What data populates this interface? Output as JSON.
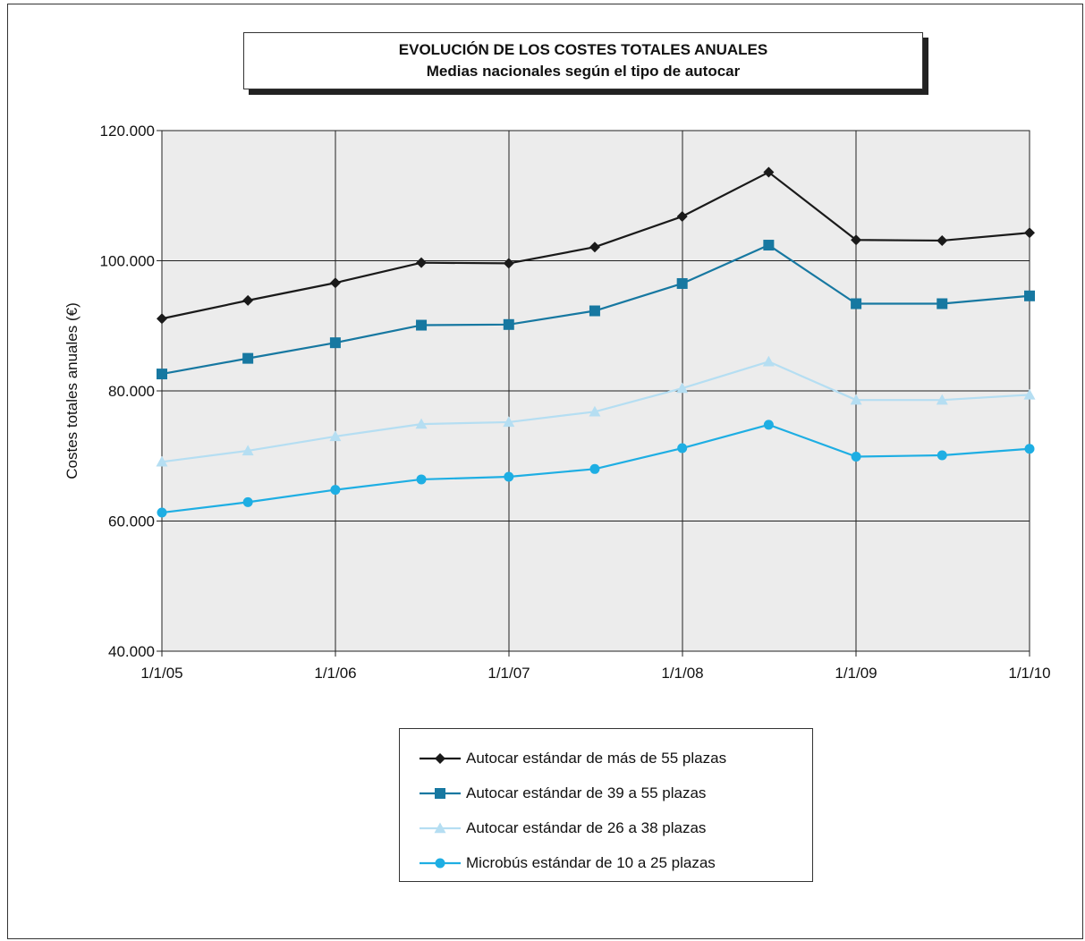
{
  "chart_data": {
    "type": "line",
    "title": "EVOLUCIÓN DE LOS COSTES TOTALES ANUALES",
    "subtitle": "Medias nacionales según el tipo de autocar",
    "xlabel": "",
    "ylabel": "Costes totales anuales (€)",
    "ylim": [
      40000,
      120000
    ],
    "yticks": [
      "40.000",
      "60.000",
      "80.000",
      "100.000",
      "120.000"
    ],
    "xlim": [
      "2005-01-01",
      "2010-01-01"
    ],
    "xticks": [
      "1/1/05",
      "1/1/06",
      "1/1/07",
      "1/1/08",
      "1/1/09",
      "1/1/10"
    ],
    "x": [
      "2005-01-01",
      "2005-07-01",
      "2006-01-01",
      "2006-07-01",
      "2007-01-01",
      "2007-07-01",
      "2008-01-01",
      "2008-07-01",
      "2009-01-01",
      "2009-07-01",
      "2010-01-01"
    ],
    "grid": true,
    "legend": "bottom-center",
    "series": [
      {
        "name": "Autocar estándar de más de 55 plazas",
        "marker": "diamond",
        "color": "#1a1a1a",
        "values": [
          91100,
          93900,
          96600,
          99700,
          99600,
          102100,
          106800,
          113600,
          103200,
          103100,
          104300
        ]
      },
      {
        "name": "Autocar estándar de 39 a 55 plazas",
        "marker": "square",
        "color": "#1778a1",
        "values": [
          82600,
          85000,
          87400,
          90100,
          90200,
          92300,
          96500,
          102400,
          93400,
          93400,
          94600
        ]
      },
      {
        "name": "Autocar estándar de 26 a 38 plazas",
        "marker": "triangle",
        "color": "#b5def2",
        "values": [
          69100,
          70800,
          73000,
          74900,
          75200,
          76800,
          80400,
          84500,
          78600,
          78600,
          79400
        ]
      },
      {
        "name": "Microbús estándar de 10 a 25 plazas",
        "marker": "circle",
        "color": "#1eaee3",
        "values": [
          61300,
          62900,
          64800,
          66400,
          66800,
          68000,
          71200,
          74800,
          69900,
          70100,
          71100
        ]
      }
    ]
  }
}
